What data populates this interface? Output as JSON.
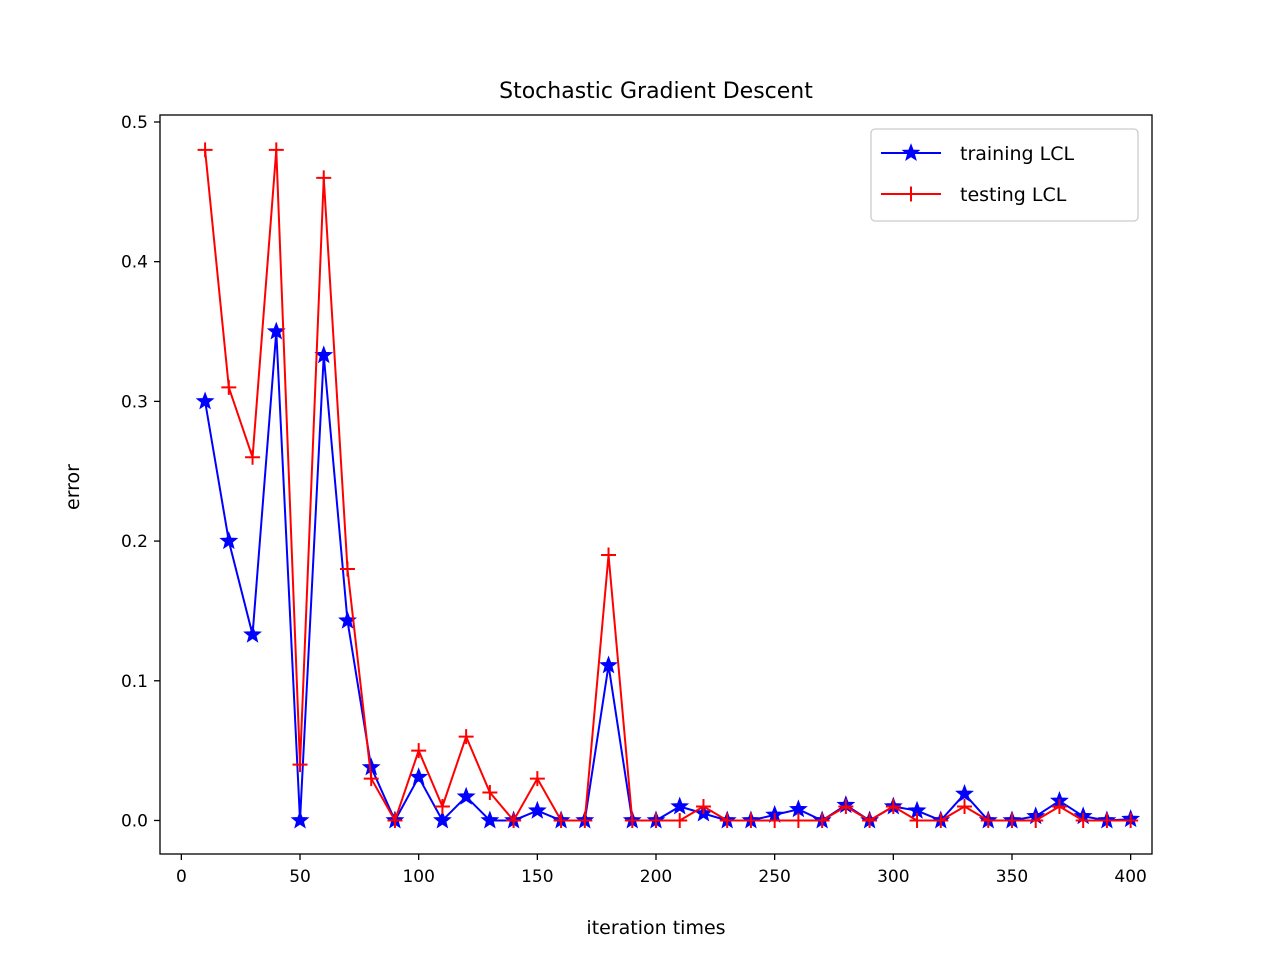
{
  "chart_data": {
    "type": "line",
    "title": "Stochastic Gradient Descent",
    "xlabel": "iteration times",
    "ylabel": "error",
    "xlim": [
      -9,
      409
    ],
    "ylim": [
      -0.024,
      0.505
    ],
    "xticks": [
      0,
      50,
      100,
      150,
      200,
      250,
      300,
      350,
      400
    ],
    "yticks": [
      0.0,
      0.1,
      0.2,
      0.3,
      0.4,
      0.5
    ],
    "grid": false,
    "legend_position": "top-right",
    "x": [
      10,
      20,
      30,
      40,
      50,
      60,
      70,
      80,
      90,
      100,
      110,
      120,
      130,
      140,
      150,
      160,
      170,
      180,
      190,
      200,
      210,
      220,
      230,
      240,
      250,
      260,
      270,
      280,
      290,
      300,
      310,
      320,
      330,
      340,
      350,
      360,
      370,
      380,
      390,
      400
    ],
    "series": [
      {
        "name": "training LCL",
        "color": "#0000ff",
        "marker": "star",
        "values": [
          0.3,
          0.2,
          0.133,
          0.35,
          0.0,
          0.333,
          0.143,
          0.038,
          0.0,
          0.031,
          0.0,
          0.017,
          0.0,
          0.0,
          0.007,
          0.0,
          0.0,
          0.111,
          0.0,
          0.0,
          0.01,
          0.005,
          0.0,
          0.0,
          0.004,
          0.008,
          0.0,
          0.011,
          0.0,
          0.01,
          0.007,
          0.0,
          0.019,
          0.0,
          0.0,
          0.003,
          0.014,
          0.003,
          0.0,
          0.001
        ]
      },
      {
        "name": "testing LCL",
        "color": "#ff0000",
        "marker": "plus",
        "values": [
          0.48,
          0.31,
          0.26,
          0.48,
          0.04,
          0.46,
          0.18,
          0.03,
          0.0,
          0.05,
          0.01,
          0.06,
          0.02,
          0.0,
          0.03,
          0.0,
          0.0,
          0.19,
          0.0,
          0.0,
          0.0,
          0.01,
          0.0,
          0.0,
          0.0,
          0.0,
          0.0,
          0.01,
          0.0,
          0.01,
          0.0,
          0.0,
          0.01,
          0.0,
          0.0,
          0.0,
          0.01,
          0.0,
          0.0,
          0.0
        ]
      }
    ]
  }
}
